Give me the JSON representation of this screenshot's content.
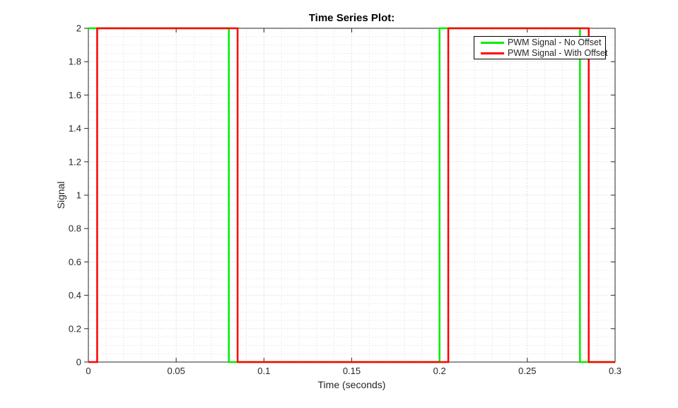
{
  "figure": {
    "background": "#ffffff"
  },
  "chart_data": {
    "type": "line",
    "subtype": "step-square-wave",
    "title": "Time Series Plot:",
    "xlabel": "Time (seconds)",
    "ylabel": "Signal",
    "xlim": [
      0,
      0.3
    ],
    "ylim": [
      0,
      2
    ],
    "xticks": [
      0,
      0.05,
      0.1,
      0.15,
      0.2,
      0.25,
      0.3
    ],
    "xtick_labels": [
      "0",
      "0.05",
      "0.1",
      "0.15",
      "0.2",
      "0.25",
      "0.3"
    ],
    "yticks": [
      0,
      0.2,
      0.4,
      0.6,
      0.8,
      1,
      1.2,
      1.4,
      1.6,
      1.8,
      2
    ],
    "ytick_labels": [
      "0",
      "0.2",
      "0.4",
      "0.6",
      "0.8",
      "1",
      "1.2",
      "1.4",
      "1.6",
      "1.8",
      "2"
    ],
    "grid": {
      "show_major": true,
      "show_minor": true,
      "x_minor_step": 0.01,
      "y_minor_step": 0.05,
      "line_style": "dotted",
      "major_color": "#d7d7d7",
      "minor_color": "#e6e6e6"
    },
    "axis_color": "#262626",
    "legend": {
      "position": "northeast",
      "entries": [
        {
          "label": "PWM Signal - No Offset",
          "color": "#00ee00"
        },
        {
          "label": "PWM Signal - With Offset",
          "color": "#ff0000"
        }
      ]
    },
    "series": [
      {
        "name": "PWM Signal - No Offset",
        "color": "#00ee00",
        "line_width": 2.5,
        "x": [
          0,
          0.08,
          0.08,
          0.2,
          0.2,
          0.28,
          0.28,
          0.3
        ],
        "y": [
          2,
          2,
          0,
          0,
          2,
          2,
          0,
          0
        ]
      },
      {
        "name": "PWM Signal - With Offset",
        "color": "#ff0000",
        "line_width": 2.5,
        "x": [
          0,
          0.005,
          0.005,
          0.085,
          0.085,
          0.205,
          0.205,
          0.285,
          0.285,
          0.3
        ],
        "y": [
          0,
          0,
          2,
          2,
          0,
          0,
          2,
          2,
          0,
          0
        ]
      }
    ]
  }
}
